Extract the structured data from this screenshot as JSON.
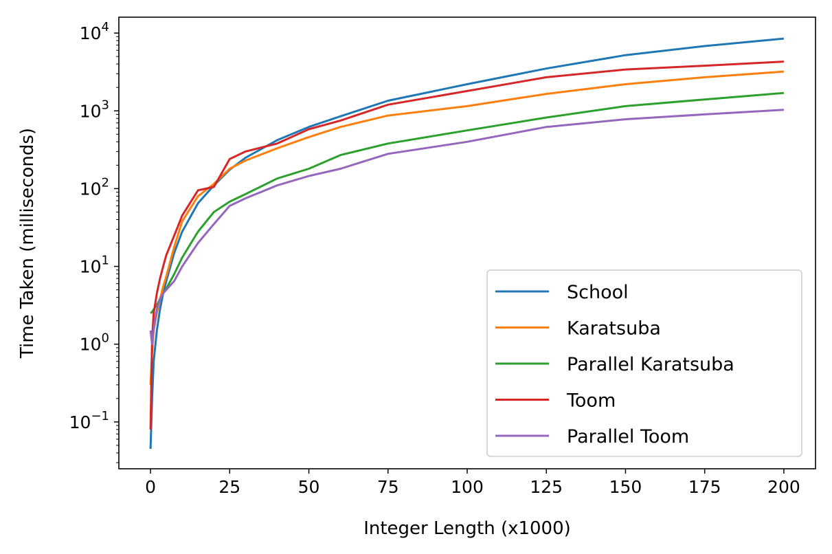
{
  "chart_data": {
    "type": "line",
    "title": "",
    "xlabel": "Integer Length (x1000)",
    "ylabel": "Time Taken (milliseconds)",
    "xlim": [
      -10,
      210
    ],
    "ylim": [
      0.025,
      16000
    ],
    "yscale": "log",
    "xticks": [
      0,
      25,
      50,
      75,
      100,
      125,
      150,
      175,
      200
    ],
    "yticks": [
      {
        "value": 0.1,
        "base": "10",
        "exp": "−1"
      },
      {
        "value": 1,
        "base": "10",
        "exp": "0"
      },
      {
        "value": 10,
        "base": "10",
        "exp": "1"
      },
      {
        "value": 100,
        "base": "10",
        "exp": "2"
      },
      {
        "value": 1000,
        "base": "10",
        "exp": "3"
      },
      {
        "value": 10000,
        "base": "10",
        "exp": "4"
      }
    ],
    "grid": false,
    "legend_position": "lower-right",
    "x": [
      0,
      0.5,
      1,
      2,
      3,
      4,
      5,
      7.5,
      10,
      15,
      20,
      25,
      30,
      40,
      50,
      60,
      75,
      100,
      125,
      150,
      175,
      200
    ],
    "series": [
      {
        "name": "School",
        "color": "#1f77b4",
        "values": [
          0.045,
          0.2,
          0.6,
          1.5,
          2.8,
          4.5,
          6.5,
          15,
          28,
          65,
          110,
          175,
          250,
          420,
          620,
          850,
          1350,
          2200,
          3500,
          5200,
          6800,
          8500
        ]
      },
      {
        "name": "Karatsuba",
        "color": "#ff7f0e",
        "values": [
          0.3,
          0.8,
          1.5,
          2.5,
          3.8,
          5.5,
          7.5,
          18,
          38,
          80,
          115,
          180,
          230,
          330,
          460,
          620,
          870,
          1150,
          1650,
          2200,
          2700,
          3200
        ]
      },
      {
        "name": "Parallel Karatsuba",
        "color": "#2ca02c",
        "values": [
          2.5,
          2.6,
          2.8,
          3.2,
          3.8,
          4.5,
          5.2,
          8,
          13,
          28,
          50,
          68,
          85,
          135,
          180,
          270,
          380,
          560,
          820,
          1150,
          1400,
          1700
        ]
      },
      {
        "name": "Toom",
        "color": "#d62728",
        "values": [
          0.08,
          1.2,
          2.5,
          4.5,
          7,
          10,
          14,
          25,
          45,
          95,
          105,
          240,
          300,
          380,
          580,
          750,
          1200,
          1800,
          2700,
          3400,
          3800,
          4300
        ]
      },
      {
        "name": "Parallel Toom",
        "color": "#9467bd",
        "values": [
          1.5,
          1.0,
          1.6,
          2.8,
          3.8,
          4.5,
          5.0,
          6.5,
          10,
          20,
          35,
          60,
          75,
          110,
          145,
          180,
          280,
          400,
          620,
          780,
          900,
          1030
        ]
      }
    ]
  }
}
